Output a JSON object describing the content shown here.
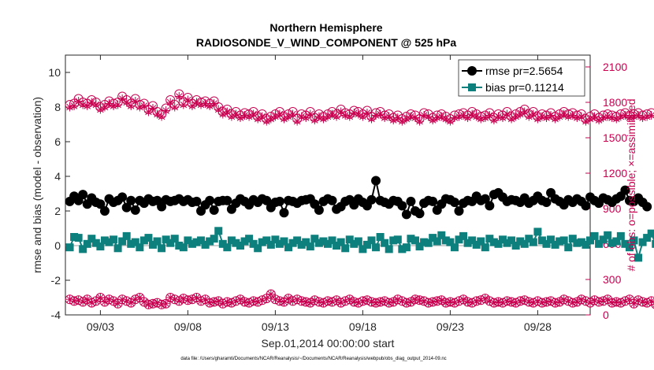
{
  "chart_data": {
    "type": "line",
    "title": [
      "Northern Hemisphere",
      "RADIOSONDE_V_WIND_COMPONENT @ 525 hPa"
    ],
    "xlabel": "Sep.01,2014 00:00:00 start",
    "ylabel": "rmse and bias (model - observation)",
    "ylabel_right": "# of obs: o=possible; ×=assimilated",
    "xlim": [
      1.0,
      31.0
    ],
    "ylim": [
      -4,
      11
    ],
    "ylim_right": [
      0,
      2200
    ],
    "x_ticks": [
      3,
      8,
      13,
      18,
      23,
      28
    ],
    "x_tick_labels": [
      "09/03",
      "09/08",
      "09/13",
      "09/18",
      "09/23",
      "09/28"
    ],
    "y_ticks": [
      -4,
      -2,
      0,
      2,
      4,
      6,
      8,
      10
    ],
    "y_tick_labels": [
      "-4",
      "-2",
      "0",
      "2",
      "4",
      "6",
      "8",
      "10"
    ],
    "y_right_ticks": [
      0,
      300,
      600,
      900,
      1200,
      1500,
      1800,
      2100
    ],
    "y_right_tick_labels": [
      "0",
      "300",
      "600",
      "900",
      "1200",
      "1500",
      "1800",
      "2100"
    ],
    "legend": [
      "rmse pr=2.5654",
      "bias pr=0.11214"
    ],
    "legend_position": "top-right",
    "footnote": "data file: /Users/gharamti/Documents/NCAR/Reanalysis/~/Documents/NCAR/Reanalysis/webpub/obs_diag_output_2014-09.nc",
    "x_start": 1.25,
    "x_step": 0.25,
    "series": [
      {
        "name": "rmse",
        "axis": "left",
        "color": "#000000",
        "values": [
          2.55,
          2.85,
          2.6,
          2.95,
          2.4,
          2.75,
          2.5,
          2.4,
          2.0,
          2.7,
          2.5,
          2.6,
          2.8,
          2.2,
          2.6,
          2.05,
          2.6,
          2.45,
          2.7,
          2.55,
          2.6,
          2.25,
          2.65,
          2.55,
          2.6,
          2.7,
          2.55,
          2.65,
          2.5,
          2.55,
          2.0,
          2.35,
          2.6,
          2.05,
          2.55,
          2.6,
          2.6,
          2.1,
          2.45,
          2.7,
          2.55,
          2.35,
          2.65,
          2.5,
          2.7,
          2.6,
          2.2,
          2.5,
          2.55,
          1.9,
          2.6,
          2.55,
          2.45,
          2.6,
          2.65,
          2.7,
          2.4,
          2.05,
          2.55,
          2.7,
          2.6,
          2.1,
          2.25,
          2.55,
          2.65,
          2.35,
          2.7,
          2.5,
          2.3,
          2.65,
          3.75,
          2.6,
          2.5,
          2.4,
          2.6,
          2.55,
          2.3,
          1.8,
          2.55,
          2.0,
          1.85,
          2.45,
          2.6,
          2.55,
          2.05,
          2.4,
          2.7,
          2.65,
          2.5,
          2.0,
          2.45,
          2.6,
          2.55,
          2.85,
          2.6,
          2.7,
          2.3,
          2.95,
          3.05,
          2.8,
          2.55,
          2.65,
          2.6,
          2.5,
          2.75,
          2.45,
          2.6,
          2.85,
          2.6,
          2.5,
          3.05,
          2.7,
          2.55,
          2.35,
          2.65,
          2.5,
          2.7,
          2.55,
          2.3,
          2.8,
          2.6,
          2.45,
          2.75,
          2.65,
          2.5,
          2.7,
          2.85,
          3.2,
          2.6,
          2.55,
          2.75,
          2.5,
          2.25
        ]
      },
      {
        "name": "bias",
        "axis": "left",
        "color": "#0d7f7c",
        "values": [
          -0.1,
          0.5,
          0.45,
          -0.2,
          0.1,
          0.4,
          0.15,
          -0.05,
          0.3,
          0.2,
          0.35,
          -0.15,
          0.25,
          0.55,
          0.1,
          0.2,
          -0.1,
          0.3,
          0.45,
          0.05,
          0.25,
          -0.15,
          0.35,
          0.15,
          0.4,
          0.0,
          -0.1,
          0.3,
          0.1,
          0.2,
          0.3,
          0.05,
          0.25,
          0.4,
          0.85,
          0.1,
          -0.1,
          0.3,
          0.15,
          0.0,
          0.25,
          0.4,
          0.1,
          -0.15,
          0.2,
          0.3,
          0.05,
          0.35,
          0.1,
          0.25,
          -0.1,
          0.15,
          0.3,
          0.05,
          0.2,
          -0.05,
          0.4,
          0.15,
          0.25,
          0.1,
          0.3,
          0.0,
          0.2,
          -0.15,
          0.35,
          0.1,
          0.25,
          -0.2,
          0.05,
          0.3,
          -0.1,
          0.5,
          0.15,
          -0.2,
          0.3,
          0.35,
          -0.2,
          -0.1,
          0.4,
          0.3,
          -0.05,
          0.2,
          0.15,
          0.45,
          0.25,
          0.6,
          0.3,
          0.2,
          -0.1,
          0.35,
          0.55,
          0.15,
          0.3,
          0.05,
          0.25,
          -0.1,
          0.4,
          0.2,
          0.1,
          0.35,
          0.15,
          0.3,
          0.0,
          0.25,
          0.1,
          0.4,
          0.2,
          0.8,
          0.3,
          0.1,
          0.35,
          0.05,
          0.25,
          0.3,
          -0.1,
          0.4,
          0.15,
          0.2,
          0.05,
          0.3,
          0.55,
          0.1,
          0.35,
          0.6,
          0.15,
          0.25,
          0.55,
          0.1,
          -0.1,
          0.3,
          -0.7,
          0.2,
          0.45,
          0.7,
          0.1
        ]
      },
      {
        "name": "possible",
        "axis": "right",
        "color": "#c8004f",
        "values": [
          1780,
          1790,
          1830,
          1800,
          1790,
          1820,
          1800,
          1760,
          1780,
          1810,
          1790,
          1800,
          1850,
          1820,
          1790,
          1830,
          1780,
          1790,
          1740,
          1770,
          1720,
          1700,
          1750,
          1820,
          1780,
          1870,
          1800,
          1840,
          1790,
          1820,
          1800,
          1810,
          1790,
          1810,
          1760,
          1720,
          1740,
          1700,
          1720,
          1690,
          1710,
          1700,
          1720,
          1680,
          1700,
          1660,
          1680,
          1700,
          1720,
          1680,
          1700,
          1720,
          1660,
          1700,
          1690,
          1720,
          1670,
          1700,
          1680,
          1700,
          1720,
          1700,
          1740,
          1710,
          1700,
          1730,
          1720,
          1700,
          1730,
          1680,
          1710,
          1720,
          1690,
          1700,
          1670,
          1690,
          1660,
          1680,
          1700,
          1690,
          1660,
          1710,
          1700,
          1670,
          1690,
          1700,
          1680,
          1660,
          1690,
          1700,
          1710,
          1690,
          1720,
          1700,
          1680,
          1690,
          1710,
          1670,
          1700,
          1690,
          1720,
          1680,
          1700,
          1720,
          1740,
          1700,
          1720,
          1680,
          1700,
          1690,
          1710,
          1680,
          1700,
          1720,
          1700,
          1710,
          1690,
          1700,
          1660,
          1680,
          1700,
          1670,
          1690,
          1700,
          1690,
          1680,
          1700,
          1710,
          1690,
          1700,
          1710,
          1690,
          1700,
          1710
        ]
      },
      {
        "name": "assimilated",
        "axis": "right",
        "color": "#c8004f",
        "values": [
          1760,
          1770,
          1810,
          1780,
          1770,
          1800,
          1780,
          1740,
          1760,
          1790,
          1770,
          1780,
          1830,
          1800,
          1770,
          1810,
          1760,
          1770,
          1720,
          1750,
          1700,
          1680,
          1730,
          1800,
          1760,
          1850,
          1780,
          1820,
          1770,
          1800,
          1780,
          1790,
          1770,
          1790,
          1740,
          1700,
          1720,
          1680,
          1700,
          1670,
          1690,
          1680,
          1700,
          1660,
          1680,
          1640,
          1660,
          1680,
          1700,
          1660,
          1680,
          1700,
          1640,
          1680,
          1670,
          1700,
          1650,
          1680,
          1660,
          1680,
          1700,
          1680,
          1720,
          1690,
          1680,
          1710,
          1700,
          1680,
          1710,
          1660,
          1690,
          1700,
          1670,
          1680,
          1650,
          1670,
          1640,
          1660,
          1680,
          1670,
          1640,
          1690,
          1680,
          1650,
          1670,
          1680,
          1660,
          1640,
          1670,
          1680,
          1690,
          1670,
          1700,
          1680,
          1660,
          1670,
          1690,
          1650,
          1680,
          1670,
          1700,
          1660,
          1680,
          1700,
          1720,
          1680,
          1700,
          1660,
          1680,
          1670,
          1690,
          1660,
          1680,
          1700,
          1680,
          1690,
          1670,
          1680,
          1640,
          1660,
          1680,
          1650,
          1670,
          1680,
          1670,
          1660,
          1680,
          1690,
          1670,
          1680,
          1690,
          1670,
          1680,
          1690
        ]
      },
      {
        "name": "possible (lower)",
        "axis": "left",
        "color": "#c8004f",
        "values": [
          -3.1,
          -3.2,
          -3.15,
          -3.25,
          -3.1,
          -3.3,
          -3.2,
          -3.0,
          -3.25,
          -3.1,
          -3.2,
          -3.35,
          -3.1,
          -3.2,
          -3.3,
          -3.1,
          -3.0,
          -3.25,
          -3.4,
          -3.35,
          -3.3,
          -3.4,
          -3.35,
          -3.0,
          -3.1,
          -3.2,
          -3.05,
          -3.15,
          -3.1,
          -3.0,
          -3.2,
          -3.1,
          -3.3,
          -3.25,
          -3.2,
          -3.35,
          -3.25,
          -3.3,
          -3.2,
          -3.1,
          -3.25,
          -3.3,
          -3.2,
          -3.25,
          -3.15,
          -3.05,
          -2.8,
          -3.1,
          -3.2,
          -3.25,
          -3.05,
          -3.2,
          -3.1,
          -3.2,
          -3.25,
          -3.3,
          -3.15,
          -3.25,
          -3.3,
          -3.2,
          -3.25,
          -3.15,
          -3.3,
          -3.2,
          -3.1,
          -3.25,
          -3.3,
          -3.2,
          -3.15,
          -3.25,
          -3.3,
          -3.25,
          -3.2,
          -3.3,
          -3.25,
          -3.1,
          -3.2,
          -3.3,
          -3.25,
          -3.1,
          -3.15,
          -3.2,
          -3.3,
          -3.25,
          -3.2,
          -3.15,
          -3.3,
          -3.25,
          -3.3,
          -3.2,
          -3.1,
          -3.25,
          -3.3,
          -3.2,
          -3.15,
          -3.05,
          -3.2,
          -3.3,
          -3.25,
          -3.3,
          -3.2,
          -3.25,
          -3.3,
          -3.2,
          -3.15,
          -3.25,
          -3.3,
          -3.2,
          -3.3,
          -3.25,
          -3.2,
          -3.3,
          -3.25,
          -3.1,
          -3.2,
          -3.3,
          -3.25,
          -3.1,
          -3.2,
          -3.3,
          -3.15,
          -3.25,
          -3.2,
          -3.1,
          -3.3,
          -3.25,
          -3.3,
          -3.2,
          -3.1,
          -3.35,
          -3.15,
          -3.25,
          -3.3,
          -3.2,
          -3.4,
          -3.3,
          -3.95
        ]
      }
    ]
  }
}
